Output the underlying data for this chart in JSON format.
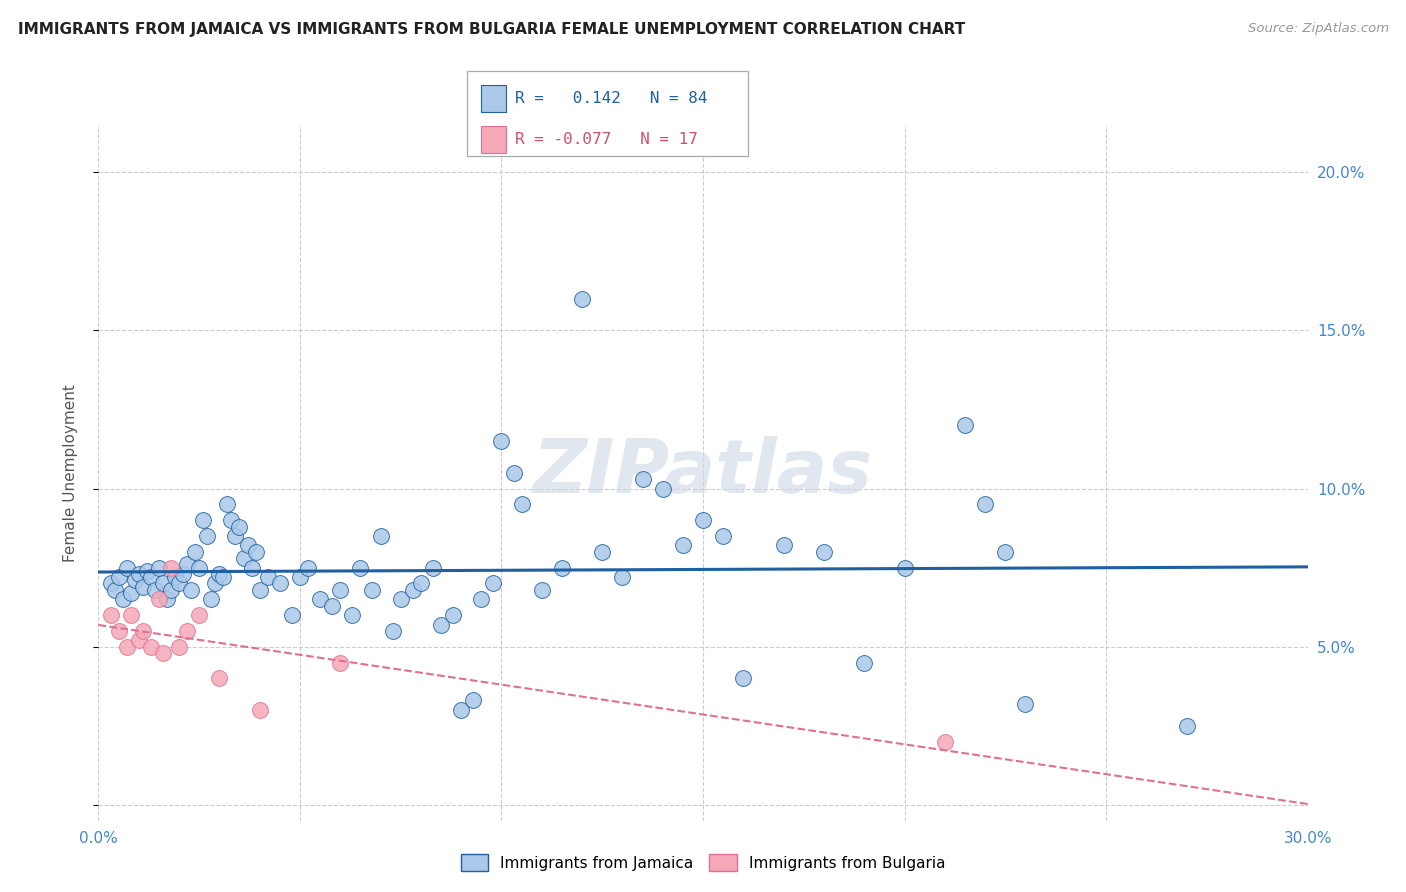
{
  "title": "IMMIGRANTS FROM JAMAICA VS IMMIGRANTS FROM BULGARIA FEMALE UNEMPLOYMENT CORRELATION CHART",
  "source": "Source: ZipAtlas.com",
  "ylabel": "Female Unemployment",
  "xlim": [
    0.0,
    0.3
  ],
  "ylim": [
    -0.005,
    0.215
  ],
  "xticks": [
    0.0,
    0.05,
    0.1,
    0.15,
    0.2,
    0.25,
    0.3
  ],
  "xtick_labels": [
    "0.0%",
    "",
    "",
    "",
    "",
    "",
    "30.0%"
  ],
  "yticks": [
    0.0,
    0.05,
    0.1,
    0.15,
    0.2
  ],
  "ytick_labels_right": [
    "",
    "5.0%",
    "10.0%",
    "15.0%",
    "20.0%"
  ],
  "jamaica_color": "#aac8e8",
  "bulgaria_color": "#f4a8b8",
  "jamaica_line_color": "#2060a0",
  "bulgaria_line_color": "#e07090",
  "r_jamaica": 0.142,
  "n_jamaica": 84,
  "r_bulgaria": -0.077,
  "n_bulgaria": 17,
  "legend_label_jamaica": "Immigrants from Jamaica",
  "legend_label_bulgaria": "Immigrants from Bulgaria",
  "watermark": "ZIPatlas",
  "jamaica_x": [
    0.003,
    0.004,
    0.005,
    0.006,
    0.007,
    0.008,
    0.009,
    0.01,
    0.011,
    0.012,
    0.013,
    0.014,
    0.015,
    0.016,
    0.017,
    0.018,
    0.019,
    0.02,
    0.021,
    0.022,
    0.023,
    0.024,
    0.025,
    0.026,
    0.027,
    0.028,
    0.029,
    0.03,
    0.031,
    0.032,
    0.033,
    0.034,
    0.035,
    0.036,
    0.037,
    0.038,
    0.039,
    0.04,
    0.042,
    0.045,
    0.048,
    0.05,
    0.052,
    0.055,
    0.058,
    0.06,
    0.063,
    0.065,
    0.068,
    0.07,
    0.073,
    0.075,
    0.078,
    0.08,
    0.083,
    0.085,
    0.088,
    0.09,
    0.093,
    0.095,
    0.098,
    0.1,
    0.103,
    0.105,
    0.11,
    0.115,
    0.12,
    0.125,
    0.13,
    0.135,
    0.14,
    0.145,
    0.15,
    0.155,
    0.16,
    0.17,
    0.18,
    0.19,
    0.2,
    0.215,
    0.22,
    0.225,
    0.23,
    0.27
  ],
  "jamaica_y": [
    0.07,
    0.068,
    0.072,
    0.065,
    0.075,
    0.067,
    0.071,
    0.073,
    0.069,
    0.074,
    0.072,
    0.068,
    0.075,
    0.07,
    0.065,
    0.068,
    0.072,
    0.07,
    0.073,
    0.076,
    0.068,
    0.08,
    0.075,
    0.09,
    0.085,
    0.065,
    0.07,
    0.073,
    0.072,
    0.095,
    0.09,
    0.085,
    0.088,
    0.078,
    0.082,
    0.075,
    0.08,
    0.068,
    0.072,
    0.07,
    0.06,
    0.072,
    0.075,
    0.065,
    0.063,
    0.068,
    0.06,
    0.075,
    0.068,
    0.085,
    0.055,
    0.065,
    0.068,
    0.07,
    0.075,
    0.057,
    0.06,
    0.03,
    0.033,
    0.065,
    0.07,
    0.115,
    0.105,
    0.095,
    0.068,
    0.075,
    0.16,
    0.08,
    0.072,
    0.103,
    0.1,
    0.082,
    0.09,
    0.085,
    0.04,
    0.082,
    0.08,
    0.045,
    0.075,
    0.12,
    0.095,
    0.08,
    0.032,
    0.025
  ],
  "bulgaria_x": [
    0.003,
    0.005,
    0.007,
    0.008,
    0.01,
    0.011,
    0.013,
    0.015,
    0.016,
    0.018,
    0.02,
    0.022,
    0.025,
    0.03,
    0.04,
    0.06,
    0.21
  ],
  "bulgaria_y": [
    0.06,
    0.055,
    0.05,
    0.06,
    0.052,
    0.055,
    0.05,
    0.065,
    0.048,
    0.075,
    0.05,
    0.055,
    0.06,
    0.04,
    0.03,
    0.045,
    0.02
  ]
}
